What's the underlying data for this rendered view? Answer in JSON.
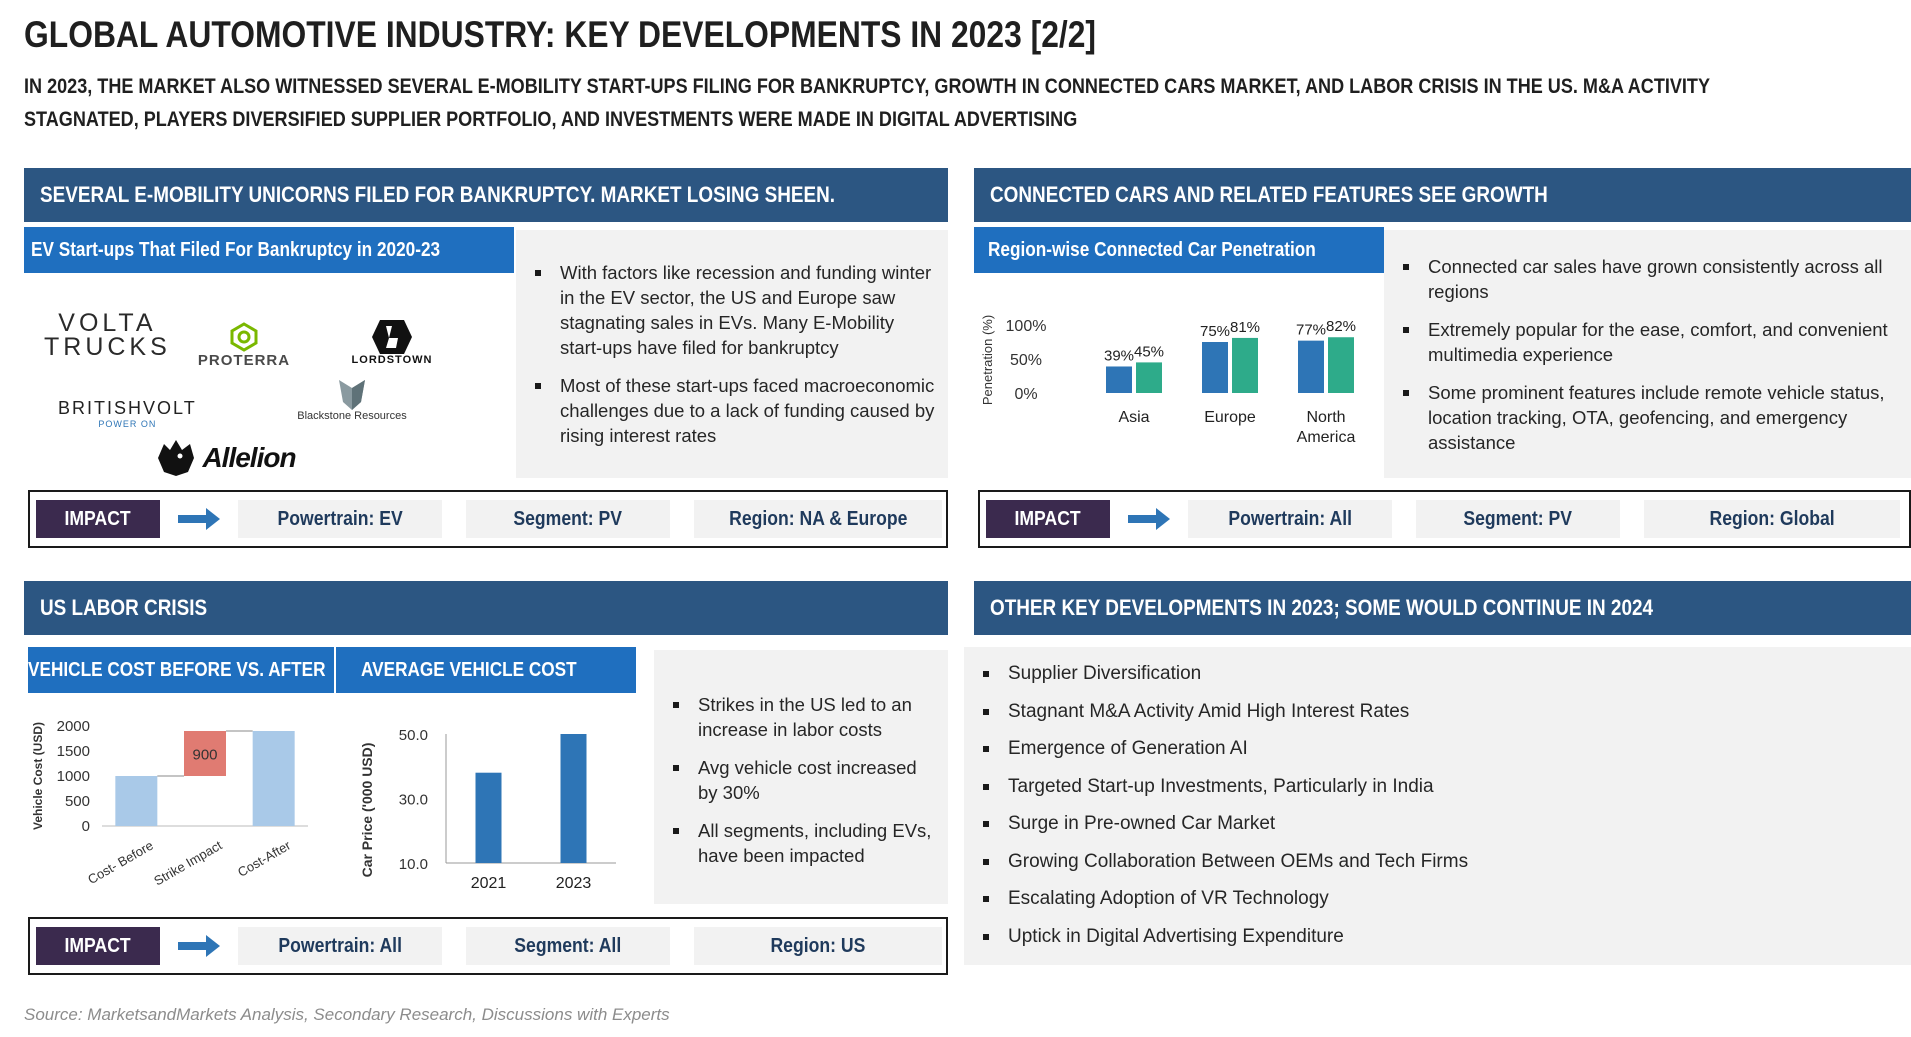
{
  "title": "GLOBAL AUTOMOTIVE INDUSTRY: KEY DEVELOPMENTS IN 2023 [2/2]",
  "subtitle": "IN 2023, THE MARKET ALSO WITNESSED SEVERAL E-MOBILITY START-UPS FILING FOR BANKRUPTCY, GROWTH IN CONNECTED CARS MARKET, AND LABOR CRISIS IN THE US. M&A ACTIVITY STAGNATED, PLAYERS DIVERSIFIED SUPPLIER PORTFOLIO, AND INVESTMENTS WERE MADE IN DIGITAL ADVERTISING",
  "colors": {
    "header": "#2c5682",
    "subheader": "#1f6fbf",
    "impact_label": "#3b2a4e",
    "bar_blue": "#2e75b6",
    "bar_green": "#2eab8a",
    "wf_light": "#a9c9e8",
    "wf_red": "#e07b72"
  },
  "sections": {
    "ev": {
      "header": "SEVERAL E-MOBILITY UNICORNS FILED FOR BANKRUPTCY. MARKET LOSING SHEEN.",
      "subheader": "EV Start-ups That Filed For Bankruptcy in 2020-23",
      "logos": {
        "volta_1": "VOLTA",
        "volta_2": "TRUCKS",
        "proterra": "PROTERRA",
        "lordstown": "LORDSTOWN",
        "britishvolt": "BRITISHVOLT",
        "britishvolt_tag": "POWER ON",
        "blackstone": "Blackstone Resources",
        "allelion": "Allelion"
      },
      "bullets": [
        "With factors like recession and funding winter in the EV sector, the US and Europe saw stagnating sales in EVs. Many E-Mobility start-ups have filed for bankruptcy",
        "Most of these start-ups faced macroeconomic challenges due to a lack of funding caused by rising interest rates"
      ],
      "impact": {
        "label": "IMPACT",
        "powertrain": "Powertrain: EV",
        "segment": "Segment: PV",
        "region": "Region: NA & Europe"
      }
    },
    "connected": {
      "header": "CONNECTED CARS AND RELATED FEATURES SEE GROWTH",
      "subheader": "Region-wise Connected Car Penetration",
      "bullets": [
        "Connected car sales have grown consistently across all regions",
        "Extremely popular for the ease, comfort, and convenient multimedia experience",
        "Some prominent features include remote vehicle status, location tracking, OTA, geofencing, and emergency assistance"
      ],
      "impact": {
        "label": "IMPACT",
        "powertrain": "Powertrain: All",
        "segment": "Segment: PV",
        "region": "Region: Global"
      }
    },
    "labor": {
      "header": "US LABOR CRISIS",
      "subheader_1": "VEHICLE COST BEFORE VS. AFTER",
      "subheader_2": "AVERAGE VEHICLE COST",
      "bullets": [
        "Strikes in the US led to an increase in labor costs",
        "Avg vehicle cost increased by 30%",
        "All segments, including EVs, have been impacted"
      ],
      "impact": {
        "label": "IMPACT",
        "powertrain": "Powertrain: All",
        "segment": "Segment: All",
        "region": "Region: US"
      }
    },
    "other": {
      "header": "OTHER KEY DEVELOPMENTS IN 2023; SOME WOULD CONTINUE IN 2024",
      "items": [
        "Supplier Diversification",
        "Stagnant M&A Activity Amid High Interest Rates",
        "Emergence of Generation AI",
        "Targeted Start-up Investments, Particularly in India",
        "Surge in Pre-owned Car Market",
        "Growing Collaboration Between OEMs and Tech Firms",
        "Escalating Adoption of VR Technology",
        "Uptick in Digital Advertising Expenditure"
      ]
    }
  },
  "source": "Source: MarketsandMarkets Analysis, Secondary Research, Discussions with Experts",
  "chart_data": [
    {
      "type": "bar",
      "categories": [
        "Asia",
        "Europe",
        "North America"
      ],
      "category_lines": [
        [
          "Asia"
        ],
        [
          "Europe"
        ],
        [
          "North",
          "America"
        ]
      ],
      "series": [
        {
          "values": [
            39,
            75,
            77
          ],
          "labels": [
            "39%",
            "75%",
            "77%"
          ]
        },
        {
          "values": [
            45,
            81,
            82
          ],
          "labels": [
            "45%",
            "81%",
            "82%"
          ]
        }
      ],
      "ylabel": "Penetration (%)",
      "yticks": [
        0,
        50,
        100
      ],
      "ytick_labels": [
        "0%",
        "50%",
        "100%"
      ],
      "ylim": [
        0,
        100
      ],
      "grid": false
    },
    {
      "type": "bar",
      "subtype": "waterfall",
      "categories": [
        "Cost- Before",
        "Strike Impact",
        "Cost-After"
      ],
      "values": [
        1000,
        900,
        1900
      ],
      "data_labels": [
        "",
        "900",
        ""
      ],
      "ylabel": "Vehicle Cost (USD)",
      "yticks": [
        0,
        500,
        1000,
        1500,
        2000
      ],
      "ylim": [
        0,
        2000
      ],
      "grid": false
    },
    {
      "type": "bar",
      "categories": [
        "2021",
        "2023"
      ],
      "values": [
        38,
        50
      ],
      "ylabel": "Car Price ('000 USD)",
      "yticks": [
        10,
        30,
        50
      ],
      "ytick_labels": [
        "10.0",
        "30.0",
        "50.0"
      ],
      "ylim": [
        10,
        50
      ],
      "grid": false
    }
  ]
}
